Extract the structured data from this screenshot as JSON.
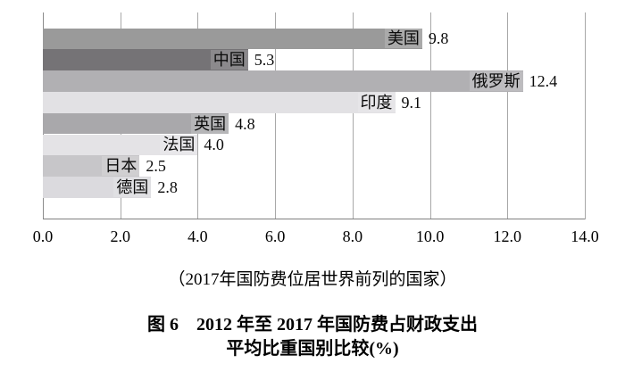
{
  "chart_data": {
    "type": "bar",
    "orientation": "horizontal",
    "categories": [
      "美国",
      "中国",
      "俄罗斯",
      "印度",
      "英国",
      "法国",
      "日本",
      "德国"
    ],
    "values": [
      9.8,
      5.3,
      12.4,
      9.1,
      4.8,
      4.0,
      2.5,
      2.8
    ],
    "value_labels": [
      "9.8",
      "5.3",
      "12.4",
      "9.1",
      "4.8",
      "4.0",
      "2.5",
      "2.8"
    ],
    "bar_colors": [
      "#9a9a9a",
      "#757376",
      "#b1b0b3",
      "#e2e1e4",
      "#a9a8ab",
      "#e4e3e6",
      "#c7c6c9",
      "#dbdade"
    ],
    "xlim": [
      0,
      14
    ],
    "xticks": [
      0,
      2,
      4,
      6,
      8,
      10,
      12,
      14
    ],
    "xtick_labels": [
      "0.0",
      "2.0",
      "4.0",
      "6.0",
      "8.0",
      "10.0",
      "12.0",
      "14.0"
    ],
    "grid": "vertical-only",
    "legend": "none",
    "caption": "（2017年国防费位居世界前列的国家）",
    "title_line1": "图 6　2012 年至 2017 年国防费占财政支出",
    "title_line2": "平均比重国别比较(%)"
  },
  "colors": {
    "background": "#ffffff",
    "gridline": "#a8a8a8",
    "axis_line": "#7f7f7f",
    "text": "#000000"
  }
}
